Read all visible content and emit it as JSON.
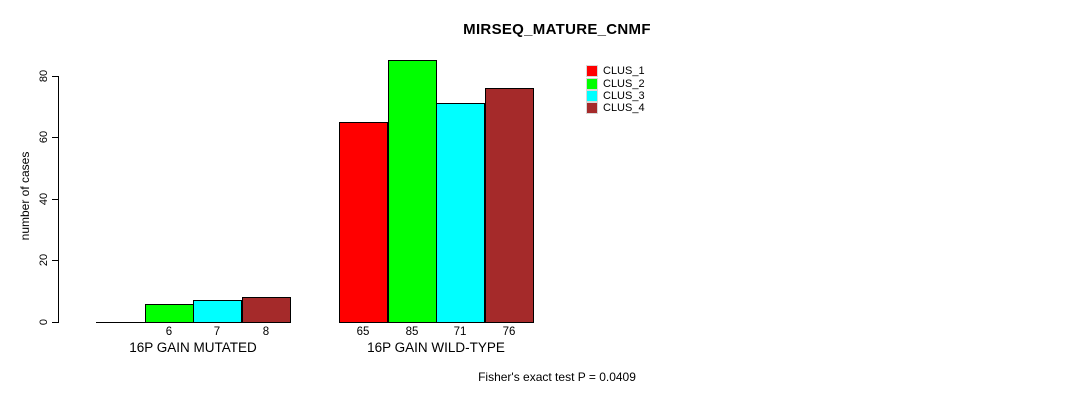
{
  "chart_data": {
    "type": "bar",
    "title": "MIRSEQ_MATURE_CNMF",
    "ylabel": "number of cases",
    "xlabel": "",
    "ylim": [
      0,
      85
    ],
    "yticks": [
      0,
      20,
      40,
      60,
      80
    ],
    "grid": false,
    "legend_position": "top-right",
    "categories": [
      "16P GAIN MUTATED",
      "16P GAIN WILD-TYPE"
    ],
    "series": [
      {
        "name": "CLUS_1",
        "color": "#ff0000",
        "values": [
          0,
          65
        ]
      },
      {
        "name": "CLUS_2",
        "color": "#00ff00",
        "values": [
          6,
          85
        ]
      },
      {
        "name": "CLUS_3",
        "color": "#00ffff",
        "values": [
          7,
          71
        ]
      },
      {
        "name": "CLUS_4",
        "color": "#a52a2a",
        "values": [
          8,
          76
        ]
      }
    ],
    "bar_labels": [
      [
        "",
        "6",
        "7",
        "8"
      ],
      [
        "65",
        "85",
        "71",
        "76"
      ]
    ],
    "note": "Fisher's exact test P = 0.0409"
  }
}
